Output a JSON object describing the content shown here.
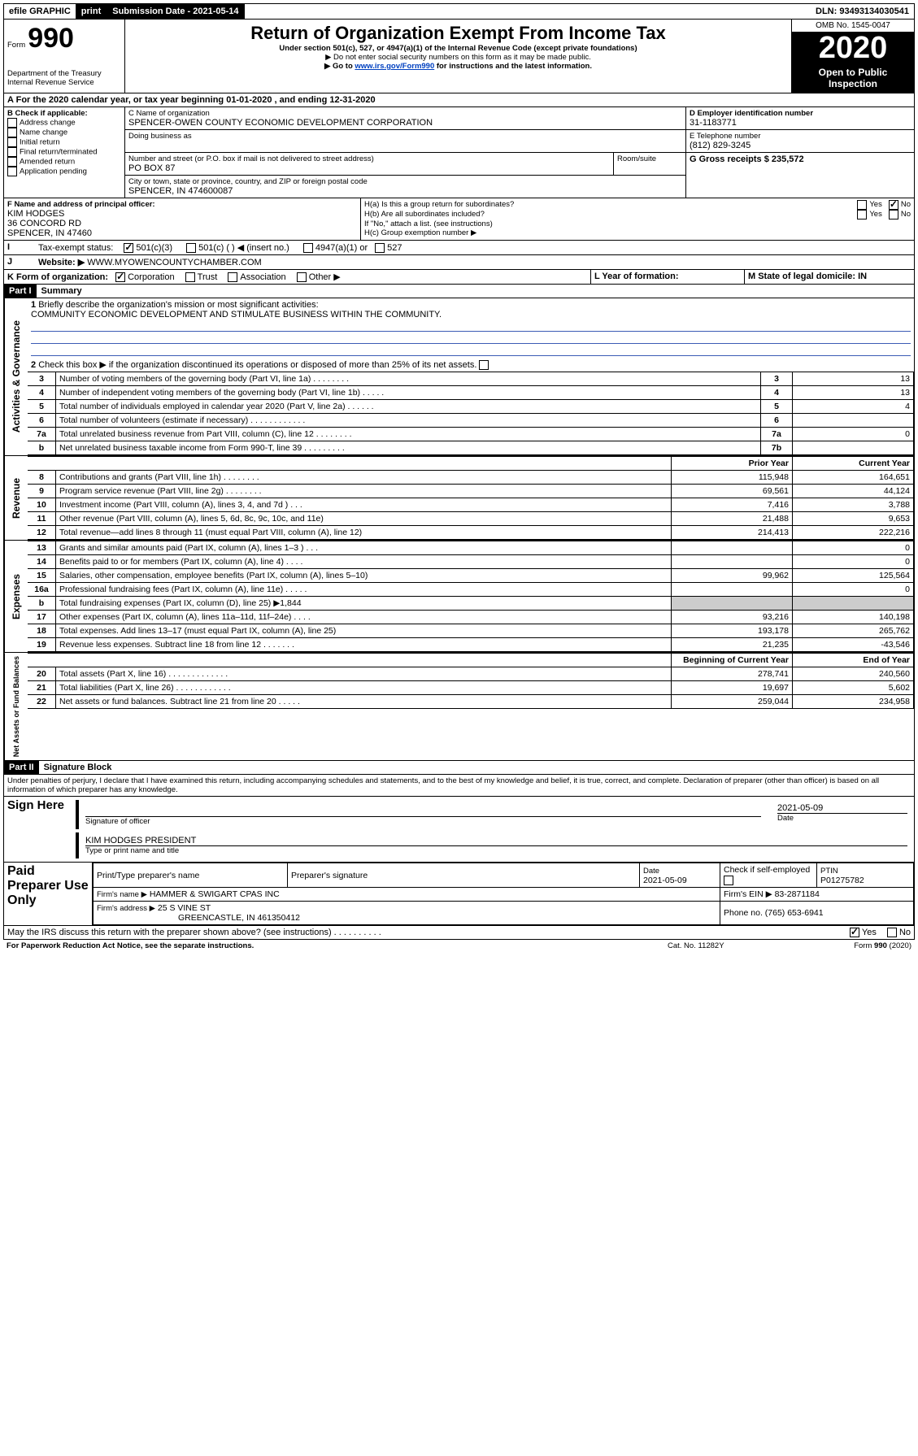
{
  "topbar": {
    "efile_label": "efile GRAPHIC",
    "print": "print",
    "sub_date_label": "Submission Date - 2021-05-14",
    "dln": "DLN: 93493134030541"
  },
  "header": {
    "form_prefix": "Form",
    "form_num": "990",
    "dept": "Department of the Treasury\nInternal Revenue Service",
    "title": "Return of Organization Exempt From Income Tax",
    "sub1": "Under section 501(c), 527, or 4947(a)(1) of the Internal Revenue Code (except private foundations)",
    "sub2": "▶ Do not enter social security numbers on this form as it may be made public.",
    "sub3_pre": "▶ Go to ",
    "sub3_link": "www.irs.gov/Form990",
    "sub3_post": " for instructions and the latest information.",
    "omb": "OMB No. 1545-0047",
    "year": "2020",
    "open": "Open to Public Inspection"
  },
  "a_line": {
    "text": "For the 2020 calendar year, or tax year beginning 01-01-2020    , and ending 12-31-2020"
  },
  "box_b": {
    "label": "B Check if applicable:",
    "items": [
      "Address change",
      "Name change",
      "Initial return",
      "Final return/terminated",
      "Amended return",
      "Application pending"
    ]
  },
  "box_c": {
    "name_label": "C Name of organization",
    "name": "SPENCER-OWEN COUNTY ECONOMIC DEVELOPMENT CORPORATION",
    "dba_label": "Doing business as",
    "addr_label": "Number and street (or P.O. box if mail is not delivered to street address)",
    "addr": "PO BOX 87",
    "room_label": "Room/suite",
    "city_label": "City or town, state or province, country, and ZIP or foreign postal code",
    "city": "SPENCER, IN  474600087"
  },
  "box_d": {
    "label": "D Employer identification number",
    "val": "31-1183771"
  },
  "box_e": {
    "label": "E Telephone number",
    "val": "(812) 829-3245"
  },
  "box_g": {
    "label": "G Gross receipts $ 235,572"
  },
  "box_f": {
    "label": "F Name and address of principal officer:",
    "name": "KIM HODGES",
    "addr1": "36 CONCORD RD",
    "addr2": "SPENCER, IN  47460"
  },
  "box_h": {
    "ha": "H(a)  Is this a group return for subordinates?",
    "hb": "H(b)  Are all subordinates included?",
    "hb2": "If \"No,\" attach a list. (see instructions)",
    "hc": "H(c)  Group exemption number ▶",
    "yes": "Yes",
    "no": "No"
  },
  "box_i": {
    "label": "Tax-exempt status:",
    "i1": "501(c)(3)",
    "i2": "501(c) (   ) ◀ (insert no.)",
    "i3": "4947(a)(1) or",
    "i4": "527"
  },
  "box_j": {
    "label": "Website: ▶",
    "val": "WWW.MYOWENCOUNTYCHAMBER.COM"
  },
  "box_k": {
    "label": "K Form of organization:",
    "corp": "Corporation",
    "trust": "Trust",
    "assoc": "Association",
    "other": "Other ▶"
  },
  "box_l": {
    "label": "L Year of formation:"
  },
  "box_m": {
    "label": "M State of legal domicile: IN"
  },
  "part1": {
    "hdr": "Part I",
    "title": "Summary"
  },
  "summary": {
    "l1": "Briefly describe the organization's mission or most significant activities:",
    "mission": "COMMUNITY ECONOMIC DEVELOPMENT AND STIMULATE BUSINESS WITHIN THE COMMUNITY.",
    "l2": "Check this box ▶        if the organization discontinued its operations or disposed of more than 25% of its net assets.",
    "rows_ag": [
      {
        "n": "3",
        "t": "Number of voting members of the governing body (Part VI, line 1a)  .   .   .   .   .   .   .   .",
        "b": "3",
        "v": "13"
      },
      {
        "n": "4",
        "t": "Number of independent voting members of the governing body (Part VI, line 1b)  .   .   .   .   .",
        "b": "4",
        "v": "13"
      },
      {
        "n": "5",
        "t": "Total number of individuals employed in calendar year 2020 (Part V, line 2a)  .   .   .   .   .   .",
        "b": "5",
        "v": "4"
      },
      {
        "n": "6",
        "t": "Total number of volunteers (estimate if necessary)  .   .   .   .   .   .   .   .   .   .   .   .",
        "b": "6",
        "v": ""
      },
      {
        "n": "7a",
        "t": "Total unrelated business revenue from Part VIII, column (C), line 12  .   .   .   .   .   .   .   .",
        "b": "7a",
        "v": "0"
      },
      {
        "n": "b",
        "t": "Net unrelated business taxable income from Form 990-T, line 39  .   .   .   .   .   .   .   .   .",
        "b": "7b",
        "v": ""
      }
    ],
    "py": "Prior Year",
    "cy": "Current Year",
    "rev": [
      {
        "n": "8",
        "t": "Contributions and grants (Part VIII, line 1h)  .   .   .   .   .   .   .   .",
        "p": "115,948",
        "c": "164,651"
      },
      {
        "n": "9",
        "t": "Program service revenue (Part VIII, line 2g)  .   .   .   .   .   .   .   .",
        "p": "69,561",
        "c": "44,124"
      },
      {
        "n": "10",
        "t": "Investment income (Part VIII, column (A), lines 3, 4, and 7d )  .   .   .",
        "p": "7,416",
        "c": "3,788"
      },
      {
        "n": "11",
        "t": "Other revenue (Part VIII, column (A), lines 5, 6d, 8c, 9c, 10c, and 11e)",
        "p": "21,488",
        "c": "9,653"
      },
      {
        "n": "12",
        "t": "Total revenue—add lines 8 through 11 (must equal Part VIII, column (A), line 12)",
        "p": "214,413",
        "c": "222,216"
      }
    ],
    "exp": [
      {
        "n": "13",
        "t": "Grants and similar amounts paid (Part IX, column (A), lines 1–3 )  .   .   .",
        "p": "",
        "c": "0"
      },
      {
        "n": "14",
        "t": "Benefits paid to or for members (Part IX, column (A), line 4)  .   .   .   .",
        "p": "",
        "c": "0"
      },
      {
        "n": "15",
        "t": "Salaries, other compensation, employee benefits (Part IX, column (A), lines 5–10)",
        "p": "99,962",
        "c": "125,564"
      },
      {
        "n": "16a",
        "t": "Professional fundraising fees (Part IX, column (A), line 11e)  .   .   .   .   .",
        "p": "",
        "c": "0"
      },
      {
        "n": "b",
        "t": "Total fundraising expenses (Part IX, column (D), line 25) ▶1,844",
        "p": "",
        "c": "",
        "shade": true
      },
      {
        "n": "17",
        "t": "Other expenses (Part IX, column (A), lines 11a–11d, 11f–24e)  .   .   .   .",
        "p": "93,216",
        "c": "140,198"
      },
      {
        "n": "18",
        "t": "Total expenses. Add lines 13–17 (must equal Part IX, column (A), line 25)",
        "p": "193,178",
        "c": "265,762"
      },
      {
        "n": "19",
        "t": "Revenue less expenses. Subtract line 18 from line 12  .   .   .   .   .   .   .",
        "p": "21,235",
        "c": "-43,546"
      }
    ],
    "boy": "Beginning of Current Year",
    "eoy": "End of Year",
    "na": [
      {
        "n": "20",
        "t": "Total assets (Part X, line 16)  .   .   .   .   .   .   .   .   .   .   .   .   .",
        "p": "278,741",
        "c": "240,560"
      },
      {
        "n": "21",
        "t": "Total liabilities (Part X, line 26)  .   .   .   .   .   .   .   .   .   .   .   .",
        "p": "19,697",
        "c": "5,602"
      },
      {
        "n": "22",
        "t": "Net assets or fund balances. Subtract line 21 from line 20  .   .   .   .   .",
        "p": "259,044",
        "c": "234,958"
      }
    ]
  },
  "vlabels": {
    "ag": "Activities & Governance",
    "rev": "Revenue",
    "exp": "Expenses",
    "na": "Net Assets or Fund Balances"
  },
  "part2": {
    "hdr": "Part II",
    "title": "Signature Block",
    "decl": "Under penalties of perjury, I declare that I have examined this return, including accompanying schedules and statements, and to the best of my knowledge and belief, it is true, correct, and complete. Declaration of preparer (other than officer) is based on all information of which preparer has any knowledge."
  },
  "sign": {
    "here": "Sign Here",
    "sig_officer": "Signature of officer",
    "date": "2021-05-09",
    "date_lbl": "Date",
    "name": "KIM HODGES PRESIDENT",
    "name_lbl": "Type or print name and title"
  },
  "paid": {
    "label": "Paid Preparer Use Only",
    "h1": "Print/Type preparer's name",
    "h2": "Preparer's signature",
    "h3": "Date",
    "h3v": "2021-05-09",
    "h4": "Check        if self-employed",
    "h5": "PTIN",
    "h5v": "P01275782",
    "firm_lbl": "Firm's name    ▶",
    "firm": "HAMMER & SWIGART CPAS INC",
    "ein_lbl": "Firm's EIN ▶ 83-2871184",
    "addr_lbl": "Firm's address ▶",
    "addr": "25 S VINE ST",
    "addr2": "GREENCASTLE, IN  461350412",
    "phone": "Phone no. (765) 653-6941"
  },
  "footer": {
    "discuss": "May the IRS discuss this return with the preparer shown above? (see instructions)  .   .   .   .   .   .   .   .   .   .",
    "pra": "For Paperwork Reduction Act Notice, see the separate instructions.",
    "cat": "Cat. No. 11282Y",
    "form": "Form 990 (2020)",
    "yes": "Yes",
    "no": "No"
  }
}
